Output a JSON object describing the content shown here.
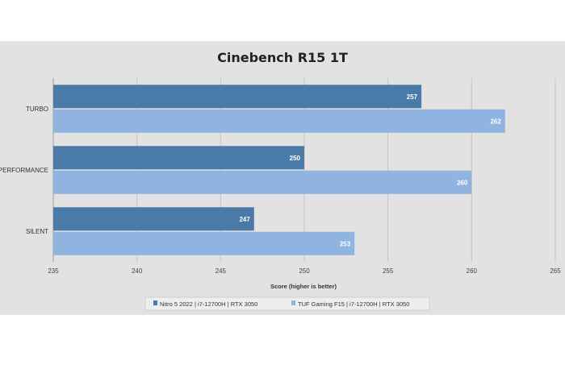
{
  "chart_data": {
    "type": "bar",
    "orientation": "horizontal",
    "title": "Cinebench R15 1T",
    "categories": [
      "TURBO",
      "PERFORMANCE",
      "SILENT"
    ],
    "series": [
      {
        "name": "Nitro 5 2022 | i7-12700H | RTX 3050",
        "values": [
          257,
          250,
          247
        ],
        "color": "#4a7aa8"
      },
      {
        "name": "TUF Gaming F15 | i7-12700H | RTX 3050",
        "values": [
          262,
          260,
          253
        ],
        "color": "#8fb4e0"
      }
    ],
    "xlabel": "Score (higher is better)",
    "ylabel": "",
    "xlim": [
      235,
      265
    ],
    "xticks": [
      235,
      240,
      245,
      250,
      255,
      260,
      265
    ],
    "grid": true,
    "legend_position": "bottom"
  }
}
